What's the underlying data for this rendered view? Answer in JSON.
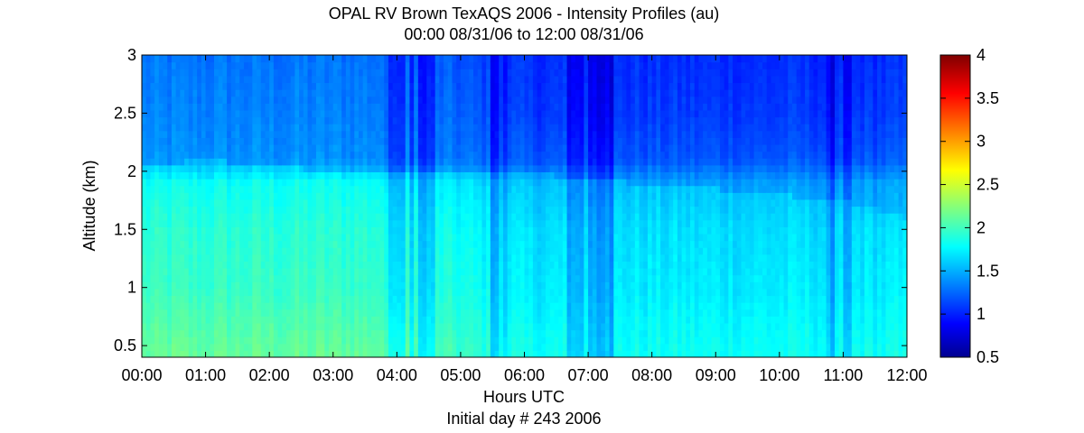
{
  "chart_data": {
    "type": "heatmap",
    "title": "OPAL RV Brown TexAQS 2006 - Intensity Profiles (au)",
    "subtitle": "00:00 08/31/06 to 12:00 08/31/06",
    "xlabel": "Hours UTC",
    "xlabel2": "Initial day # 243  2006",
    "ylabel": "Altitude (km)",
    "x_range_hours": [
      0,
      12
    ],
    "y_range_km": [
      0.4,
      3.0
    ],
    "x_ticks": [
      {
        "value": 0,
        "label": "00:00"
      },
      {
        "value": 1,
        "label": "01:00"
      },
      {
        "value": 2,
        "label": "02:00"
      },
      {
        "value": 3,
        "label": "03:00"
      },
      {
        "value": 4,
        "label": "04:00"
      },
      {
        "value": 5,
        "label": "05:00"
      },
      {
        "value": 6,
        "label": "06:00"
      },
      {
        "value": 7,
        "label": "07:00"
      },
      {
        "value": 8,
        "label": "08:00"
      },
      {
        "value": 9,
        "label": "09:00"
      },
      {
        "value": 10,
        "label": "10:00"
      },
      {
        "value": 11,
        "label": "11:00"
      },
      {
        "value": 12,
        "label": "12:00"
      }
    ],
    "y_ticks": [
      {
        "value": 0.5,
        "label": "0.5"
      },
      {
        "value": 1.0,
        "label": "1"
      },
      {
        "value": 1.5,
        "label": "1.5"
      },
      {
        "value": 2.0,
        "label": "2"
      },
      {
        "value": 2.5,
        "label": "2.5"
      },
      {
        "value": 3.0,
        "label": "3"
      }
    ],
    "colorbar": {
      "range": [
        0.5,
        4.0
      ],
      "colormap": "jet",
      "ticks": [
        {
          "value": 0.5,
          "label": "0.5"
        },
        {
          "value": 1.0,
          "label": "1"
        },
        {
          "value": 1.5,
          "label": "1.5"
        },
        {
          "value": 2.0,
          "label": "2"
        },
        {
          "value": 2.5,
          "label": "2.5"
        },
        {
          "value": 3.0,
          "label": "3"
        },
        {
          "value": 3.5,
          "label": "3.5"
        },
        {
          "value": 4.0,
          "label": "4"
        }
      ]
    },
    "boundary_layer_top_km": {
      "hours": [
        0,
        1,
        2,
        3,
        4,
        5,
        6,
        7,
        8,
        9,
        10,
        11,
        12
      ],
      "altitude": [
        2.05,
        2.1,
        2.05,
        2.0,
        2.02,
        2.0,
        1.98,
        1.95,
        1.88,
        1.85,
        1.8,
        1.75,
        1.6
      ]
    },
    "intensity_profile_typical": {
      "altitude_km": [
        0.45,
        1.0,
        1.5,
        1.9,
        2.1,
        2.5,
        3.0
      ],
      "early_hours_0_to_4": [
        2.15,
        2.0,
        1.95,
        1.85,
        1.55,
        1.5,
        1.45
      ],
      "late_hours_6_to_12": [
        1.85,
        1.75,
        1.7,
        1.6,
        1.35,
        1.25,
        1.2
      ]
    },
    "low_signal_periods_hours": [
      [
        3.8,
        4.6
      ],
      [
        5.5,
        5.8
      ],
      [
        6.5,
        7.4
      ],
      [
        10.7,
        11.2
      ]
    ]
  }
}
